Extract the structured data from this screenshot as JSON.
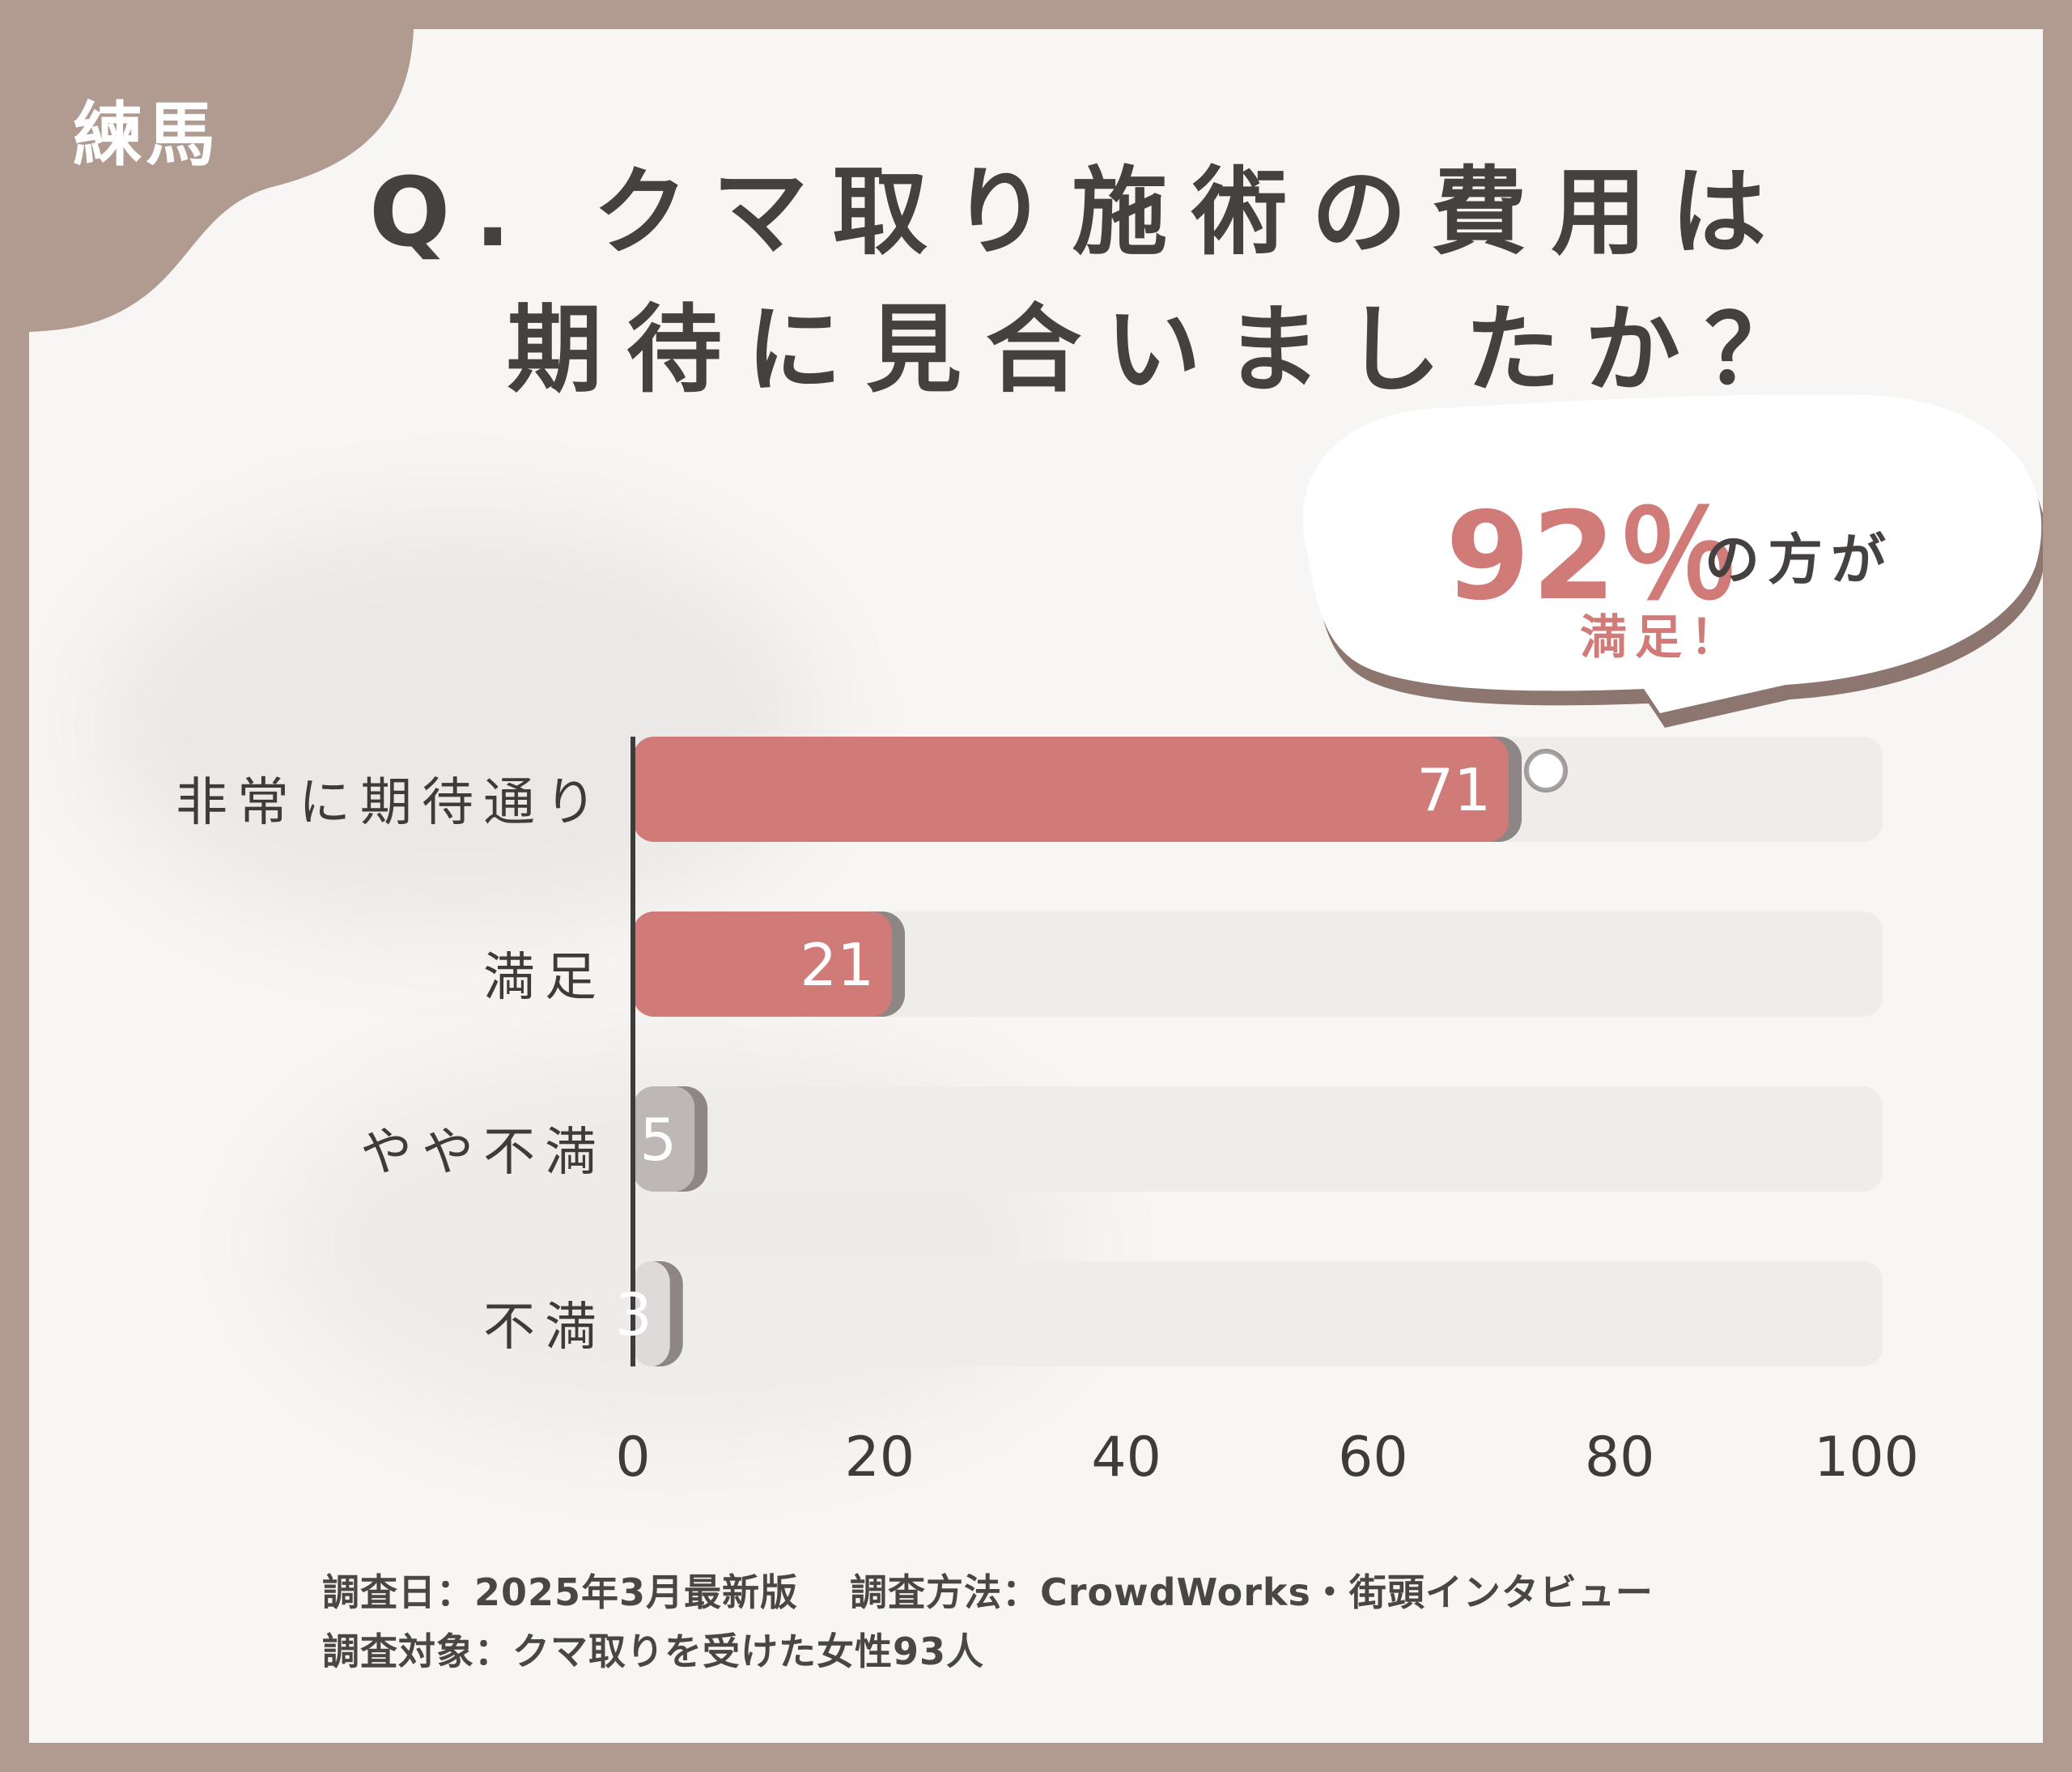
{
  "area_label": "練馬",
  "title": {
    "line1": "Q. クマ取り施術の費用は",
    "line2": "期待に見合いましたか？"
  },
  "callout": {
    "percent": "92％",
    "tail": "の方が",
    "sub": "満足！"
  },
  "colors": {
    "frame": "#b19b91",
    "accent_red": "#d17b79",
    "gray_bar": "#bdb8b6",
    "light_bar": "#dedad9",
    "track": "#efedeb",
    "text": "#3f3b3a"
  },
  "chart_data": {
    "type": "bar",
    "orientation": "horizontal",
    "categories": [
      "非常に期待通り",
      "満足",
      "やや不満",
      "不満"
    ],
    "values": [
      71,
      21,
      5,
      3
    ],
    "value_labels": [
      "71",
      "21",
      "5",
      "3"
    ],
    "xlim": [
      0,
      100
    ],
    "xticks": [
      0,
      20,
      40,
      60,
      80,
      100
    ],
    "xtick_labels": [
      "0",
      "20",
      "40",
      "60",
      "80",
      "100"
    ],
    "bar_colors": [
      "#d17b79",
      "#d17b79",
      "#bdb8b6",
      "#dedad9"
    ],
    "grid": false
  },
  "footnote": {
    "line1": "調査日：2025年3月最新版　 調査方法：CrowdWorks・街頭インタビュー",
    "line2": "調査対象：クマ取りを受けた女性93人"
  }
}
